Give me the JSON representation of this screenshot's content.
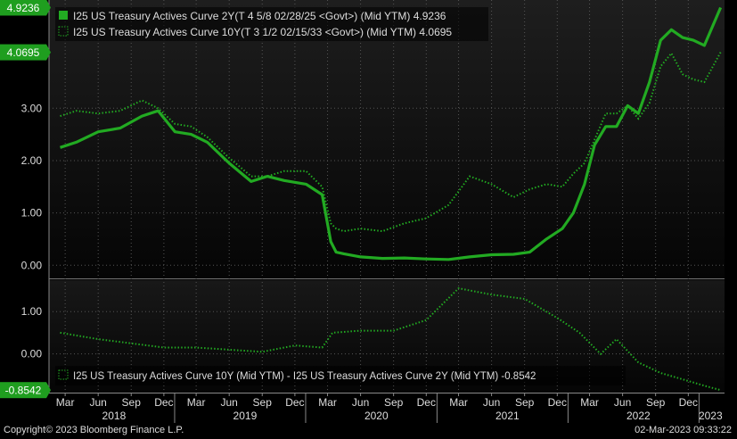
{
  "colors": {
    "background": "#000000",
    "panel_top": "#1e1e1e",
    "panel_bottom": "#050505",
    "grid": "#555555",
    "series_green": "#22aa22",
    "badge_green": "#1f9e1f",
    "text": "#dddddd"
  },
  "footer": {
    "copyright": "Copyright© 2023 Bloomberg Finance L.P.",
    "timestamp": "02-Mar-2023 09:33:22"
  },
  "chart_data": [
    {
      "type": "line",
      "legend_position": "top-left",
      "ylim": [
        -0.2,
        5.0
      ],
      "yticks": [
        "0.00",
        "1.00",
        "2.00",
        "3.00"
      ],
      "last_value_badges": [
        "4.9236",
        "4.0695"
      ],
      "grid": true,
      "x_dates": [
        "2018-02-15",
        "2018-04-01",
        "2018-06-01",
        "2018-08-01",
        "2018-10-01",
        "2018-11-15",
        "2019-01-01",
        "2019-02-15",
        "2019-04-01",
        "2019-06-01",
        "2019-08-01",
        "2019-09-15",
        "2019-11-01",
        "2020-01-01",
        "2020-02-15",
        "2020-03-10",
        "2020-03-25",
        "2020-04-15",
        "2020-06-01",
        "2020-08-01",
        "2020-10-01",
        "2020-12-01",
        "2021-02-01",
        "2021-04-01",
        "2021-06-01",
        "2021-08-01",
        "2021-09-15",
        "2021-11-01",
        "2021-12-15",
        "2022-01-15",
        "2022-02-15",
        "2022-03-15",
        "2022-04-15",
        "2022-05-15",
        "2022-06-15",
        "2022-07-15",
        "2022-08-15",
        "2022-09-15",
        "2022-10-15",
        "2022-11-15",
        "2022-12-15",
        "2023-01-15",
        "2023-03-01"
      ],
      "series": [
        {
          "name": "I25 US Treasury Actives Curve 2Y(T 4 5/8 02/28/25 <Govt>) (Mid YTM)  4.9236",
          "style": "solid",
          "values": [
            2.25,
            2.35,
            2.55,
            2.62,
            2.85,
            2.95,
            2.55,
            2.5,
            2.35,
            1.95,
            1.6,
            1.7,
            1.62,
            1.55,
            1.35,
            0.45,
            0.25,
            0.22,
            0.16,
            0.13,
            0.14,
            0.12,
            0.11,
            0.16,
            0.2,
            0.21,
            0.25,
            0.5,
            0.7,
            1.0,
            1.55,
            2.3,
            2.65,
            2.65,
            3.05,
            2.9,
            3.5,
            4.3,
            4.5,
            4.35,
            4.3,
            4.2,
            4.9236
          ]
        },
        {
          "name": "I25 US Treasury Actives Curve 10Y(T 3 1/2 02/15/33 <Govt>) (Mid YTM) 4.0695",
          "style": "dotted",
          "values": [
            2.85,
            2.95,
            2.9,
            2.95,
            3.15,
            3.0,
            2.7,
            2.65,
            2.45,
            2.05,
            1.7,
            1.7,
            1.8,
            1.8,
            1.5,
            0.8,
            0.7,
            0.65,
            0.7,
            0.65,
            0.8,
            0.9,
            1.15,
            1.7,
            1.55,
            1.3,
            1.45,
            1.55,
            1.5,
            1.75,
            1.95,
            2.4,
            2.9,
            2.9,
            3.05,
            2.8,
            3.1,
            3.8,
            4.05,
            3.65,
            3.55,
            3.5,
            4.0695
          ]
        }
      ]
    },
    {
      "type": "line",
      "legend_position": "bottom-left",
      "ylim": [
        -0.85,
        1.7
      ],
      "yticks": [
        "0.00",
        "1.00"
      ],
      "last_value_badges": [
        "-0.8542"
      ],
      "grid": true,
      "x_dates": [
        "2018-02-15",
        "2018-06-01",
        "2018-09-01",
        "2018-12-01",
        "2019-03-01",
        "2019-06-01",
        "2019-09-01",
        "2019-12-01",
        "2020-02-15",
        "2020-03-15",
        "2020-06-01",
        "2020-09-01",
        "2020-12-01",
        "2021-03-01",
        "2021-06-01",
        "2021-09-01",
        "2021-12-01",
        "2022-02-01",
        "2022-04-01",
        "2022-05-15",
        "2022-07-15",
        "2022-09-15",
        "2022-11-15",
        "2023-01-15",
        "2023-03-01"
      ],
      "series": [
        {
          "name": "I25 US Treasury Actives Curve 10Y (Mid YTM) - I25 US Treasury Actives Curve 2Y (Mid YTM) -0.8542",
          "style": "dotted",
          "values": [
            0.5,
            0.35,
            0.25,
            0.15,
            0.15,
            0.1,
            0.05,
            0.2,
            0.15,
            0.5,
            0.55,
            0.55,
            0.8,
            1.55,
            1.4,
            1.3,
            0.85,
            0.5,
            0.0,
            0.35,
            -0.2,
            -0.45,
            -0.6,
            -0.75,
            -0.8542
          ]
        }
      ]
    }
  ],
  "x_axis": {
    "month_labels": [
      {
        "date": "2018-03-01",
        "label": "Mar"
      },
      {
        "date": "2018-06-01",
        "label": "Jun"
      },
      {
        "date": "2018-09-01",
        "label": "Sep"
      },
      {
        "date": "2018-12-01",
        "label": "Dec"
      },
      {
        "date": "2019-03-01",
        "label": "Mar"
      },
      {
        "date": "2019-06-01",
        "label": "Jun"
      },
      {
        "date": "2019-09-01",
        "label": "Sep"
      },
      {
        "date": "2019-12-01",
        "label": "Dec"
      },
      {
        "date": "2020-03-01",
        "label": "Mar"
      },
      {
        "date": "2020-06-01",
        "label": "Jun"
      },
      {
        "date": "2020-09-01",
        "label": "Sep"
      },
      {
        "date": "2020-12-01",
        "label": "Dec"
      },
      {
        "date": "2021-03-01",
        "label": "Mar"
      },
      {
        "date": "2021-06-01",
        "label": "Jun"
      },
      {
        "date": "2021-09-01",
        "label": "Sep"
      },
      {
        "date": "2021-12-01",
        "label": "Dec"
      },
      {
        "date": "2022-03-01",
        "label": "Mar"
      },
      {
        "date": "2022-06-01",
        "label": "Jun"
      },
      {
        "date": "2022-09-01",
        "label": "Sep"
      },
      {
        "date": "2022-12-01",
        "label": "Dec"
      }
    ],
    "year_labels": [
      {
        "date": "2018-07-15",
        "label": "2018"
      },
      {
        "date": "2019-07-15",
        "label": "2019"
      },
      {
        "date": "2020-07-15",
        "label": "2020"
      },
      {
        "date": "2021-07-15",
        "label": "2021"
      },
      {
        "date": "2022-07-15",
        "label": "2022"
      },
      {
        "date": "2023-02-01",
        "label": "2023"
      }
    ],
    "year_dividers": [
      "2018-12-31",
      "2019-12-31",
      "2020-12-31",
      "2021-12-31",
      "2022-12-31"
    ]
  }
}
